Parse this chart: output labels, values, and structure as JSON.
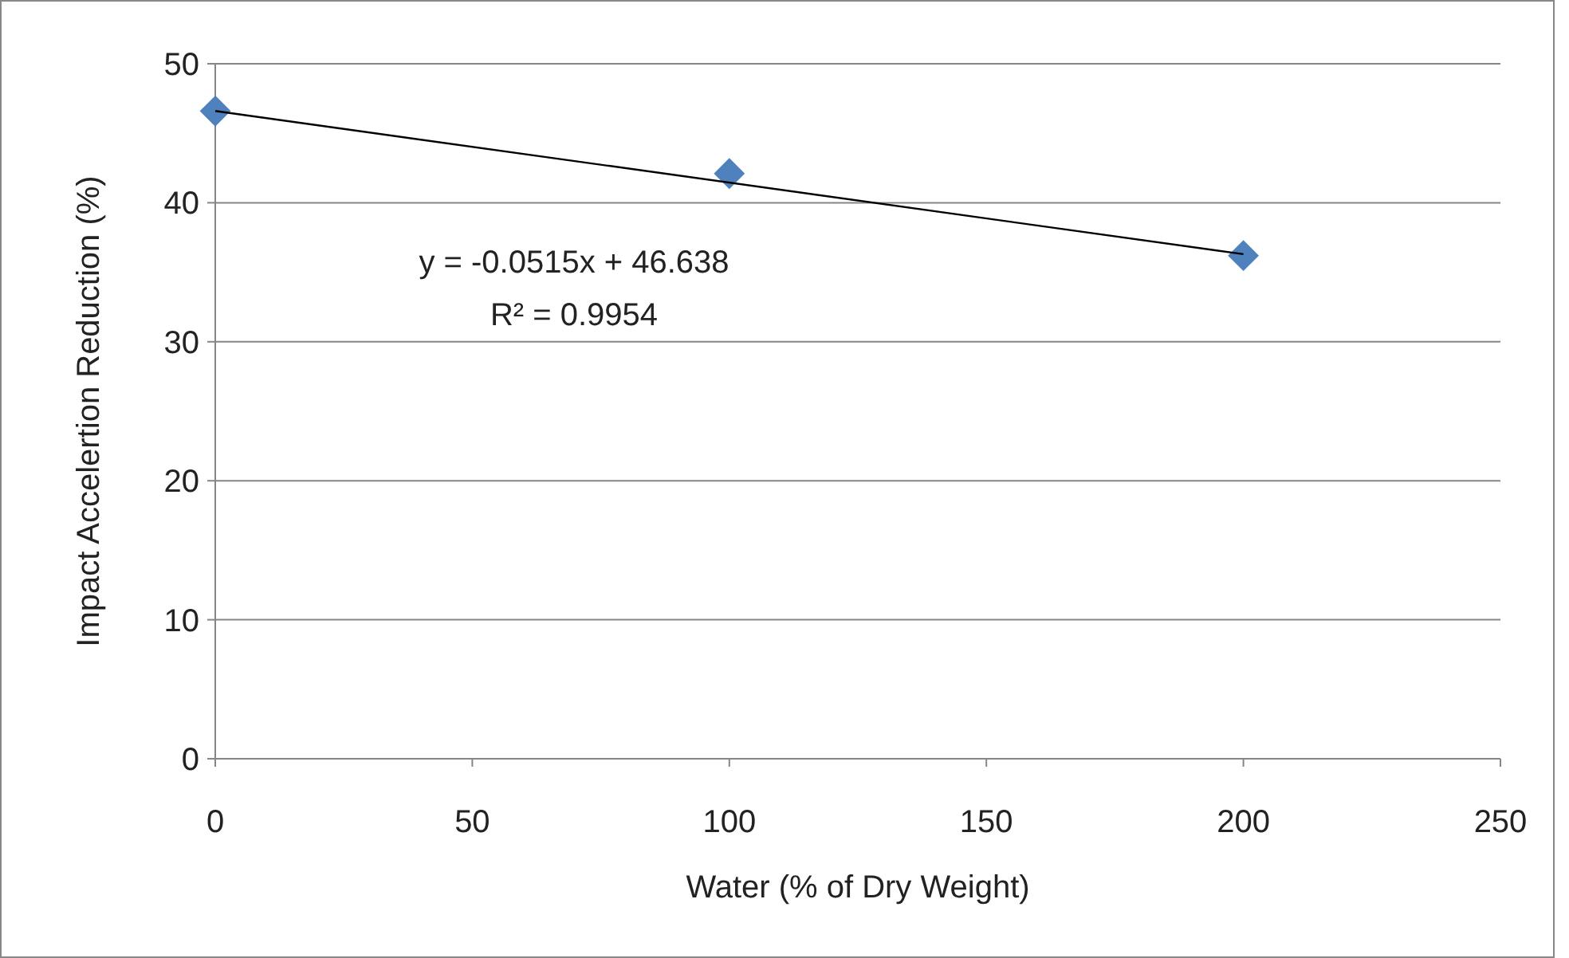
{
  "chart_data": {
    "type": "scatter",
    "xlabel": "Water (% of Dry Weight)",
    "ylabel": "Impact Accelertion Reduction (%)",
    "x": [
      0,
      100,
      200
    ],
    "series": [
      {
        "color": "#4f81bd",
        "marker": "diamond",
        "values": [
          46.6,
          42.1,
          36.2
        ]
      },
      {
        "type": "line",
        "color": "#000000",
        "marker": "none",
        "x": [
          0,
          200
        ],
        "values": [
          46.6,
          36.3
        ]
      }
    ],
    "xlim": [
      0,
      250
    ],
    "xticks": [
      0,
      50,
      100,
      150,
      200,
      250
    ],
    "ylim": [
      0,
      50
    ],
    "yticks": [
      0,
      10,
      20,
      30,
      40,
      50
    ],
    "grid": "y",
    "annotations": [
      "y = -0.0515x + 46.638",
      "R² = 0.9954"
    ]
  }
}
